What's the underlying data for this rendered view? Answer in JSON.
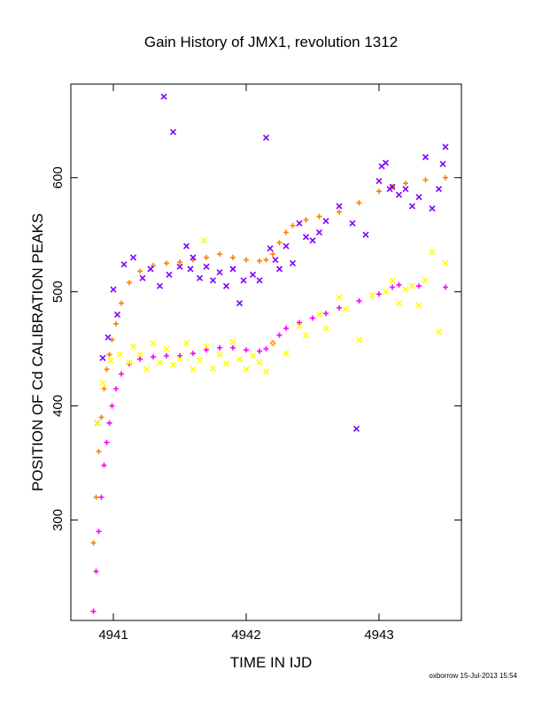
{
  "chart_data": {
    "type": "scatter",
    "title": "Gain History of JMX1, revolution 1312",
    "xlabel": "TIME IN IJD",
    "ylabel": "POSITION OF Cd CALIBRATION PEAKS",
    "xlim": [
      4940.68,
      4943.62
    ],
    "ylim": [
      212,
      682
    ],
    "xticks": [
      4941,
      4942,
      4943
    ],
    "xtick_labels": [
      "4941",
      "4942",
      "4943"
    ],
    "yticks": [
      300,
      400,
      500,
      600
    ],
    "ytick_labels": [
      "300",
      "400",
      "500",
      "600"
    ],
    "grid": false,
    "legend": "none",
    "series": [
      {
        "color": "#ff8000",
        "marker": "plus",
        "values_x": [
          4940.85,
          4940.87,
          4940.89,
          4940.91,
          4940.93,
          4940.95,
          4940.97,
          4940.99,
          4941.02,
          4941.06,
          4941.12,
          4941.2,
          4941.3,
          4941.4,
          4941.5,
          4941.6,
          4941.7,
          4941.8,
          4941.9,
          4942.0,
          4942.1,
          4942.15,
          4942.2,
          4942.25,
          4942.3,
          4942.35,
          4942.45,
          4942.55,
          4942.7,
          4942.85,
          4943.0,
          4943.1,
          4943.2,
          4943.35,
          4943.5
        ],
        "values_y": [
          280,
          320,
          360,
          390,
          415,
          432,
          445,
          458,
          472,
          490,
          508,
          518,
          523,
          525,
          526,
          528,
          530,
          533,
          530,
          528,
          527,
          528,
          533,
          543,
          552,
          558,
          563,
          566,
          570,
          578,
          588,
          592,
          595,
          598,
          600
        ]
      },
      {
        "color": "#ff00ff",
        "marker": "plus",
        "values_x": [
          4940.85,
          4940.87,
          4940.89,
          4940.91,
          4940.93,
          4940.95,
          4940.97,
          4940.99,
          4941.02,
          4941.06,
          4941.12,
          4941.2,
          4941.3,
          4941.4,
          4941.5,
          4941.6,
          4941.7,
          4941.8,
          4941.9,
          4942.0,
          4942.1,
          4942.15,
          4942.2,
          4942.25,
          4942.3,
          4942.4,
          4942.5,
          4942.6,
          4942.7,
          4942.85,
          4943.0,
          4943.1,
          4943.15,
          4943.3,
          4943.5
        ],
        "values_y": [
          220,
          255,
          290,
          320,
          348,
          368,
          385,
          400,
          415,
          428,
          437,
          441,
          443,
          444,
          444,
          446,
          449,
          451,
          451,
          449,
          448,
          450,
          455,
          462,
          468,
          473,
          477,
          481,
          486,
          492,
          498,
          504,
          506,
          505,
          504
        ]
      },
      {
        "color": "#8000ff",
        "marker": "cross",
        "values_x": [
          4940.88,
          4940.92,
          4940.96,
          4941.0,
          4941.03,
          4941.08,
          4941.15,
          4941.22,
          4941.28,
          4941.35,
          4941.38,
          4941.42,
          4941.45,
          4941.5,
          4941.55,
          4941.58,
          4941.6,
          4941.65,
          4941.7,
          4941.75,
          4941.8,
          4941.85,
          4941.9,
          4941.95,
          4941.98,
          4942.05,
          4942.1,
          4942.15,
          4942.18,
          4942.22,
          4942.25,
          4942.3,
          4942.35,
          4942.4,
          4942.45,
          4942.5,
          4942.55,
          4942.6,
          4942.7,
          4942.8,
          4942.83,
          4942.9,
          4943.0,
          4943.02,
          4943.05,
          4943.08,
          4943.1,
          4943.15,
          4943.2,
          4943.25,
          4943.3,
          4943.35,
          4943.4,
          4943.45,
          4943.48,
          4943.5
        ],
        "values_y": [
          385,
          442,
          460,
          502,
          480,
          524,
          530,
          512,
          520,
          505,
          671,
          515,
          640,
          522,
          540,
          520,
          530,
          512,
          522,
          510,
          517,
          505,
          520,
          490,
          510,
          515,
          510,
          635,
          538,
          528,
          520,
          540,
          525,
          560,
          548,
          545,
          552,
          562,
          575,
          560,
          380,
          550,
          597,
          610,
          613,
          590,
          592,
          585,
          590,
          575,
          583,
          618,
          573,
          590,
          612,
          627
        ]
      },
      {
        "color": "#ffff00",
        "marker": "cross",
        "values_x": [
          4940.88,
          4940.92,
          4940.98,
          4941.05,
          4941.12,
          4941.15,
          4941.2,
          4941.25,
          4941.3,
          4941.35,
          4941.4,
          4941.45,
          4941.5,
          4941.55,
          4941.6,
          4941.65,
          4941.68,
          4941.7,
          4941.75,
          4941.8,
          4941.85,
          4941.9,
          4941.95,
          4942.0,
          4942.05,
          4942.1,
          4942.15,
          4942.2,
          4942.3,
          4942.4,
          4942.45,
          4942.55,
          4942.6,
          4942.7,
          4942.75,
          4942.85,
          4942.95,
          4943.05,
          4943.1,
          4943.15,
          4943.2,
          4943.25,
          4943.3,
          4943.35,
          4943.4,
          4943.45,
          4943.5
        ],
        "values_y": [
          385,
          420,
          440,
          445,
          438,
          452,
          445,
          432,
          455,
          438,
          450,
          436,
          441,
          455,
          432,
          440,
          545,
          452,
          433,
          445,
          437,
          456,
          441,
          432,
          444,
          438,
          430,
          455,
          446,
          470,
          462,
          480,
          468,
          495,
          485,
          458,
          497,
          500,
          510,
          490,
          502,
          505,
          488,
          510,
          535,
          465,
          525
        ]
      }
    ]
  },
  "footer": {
    "stamp": "oxborrow 15-Jul-2013 15:54"
  }
}
